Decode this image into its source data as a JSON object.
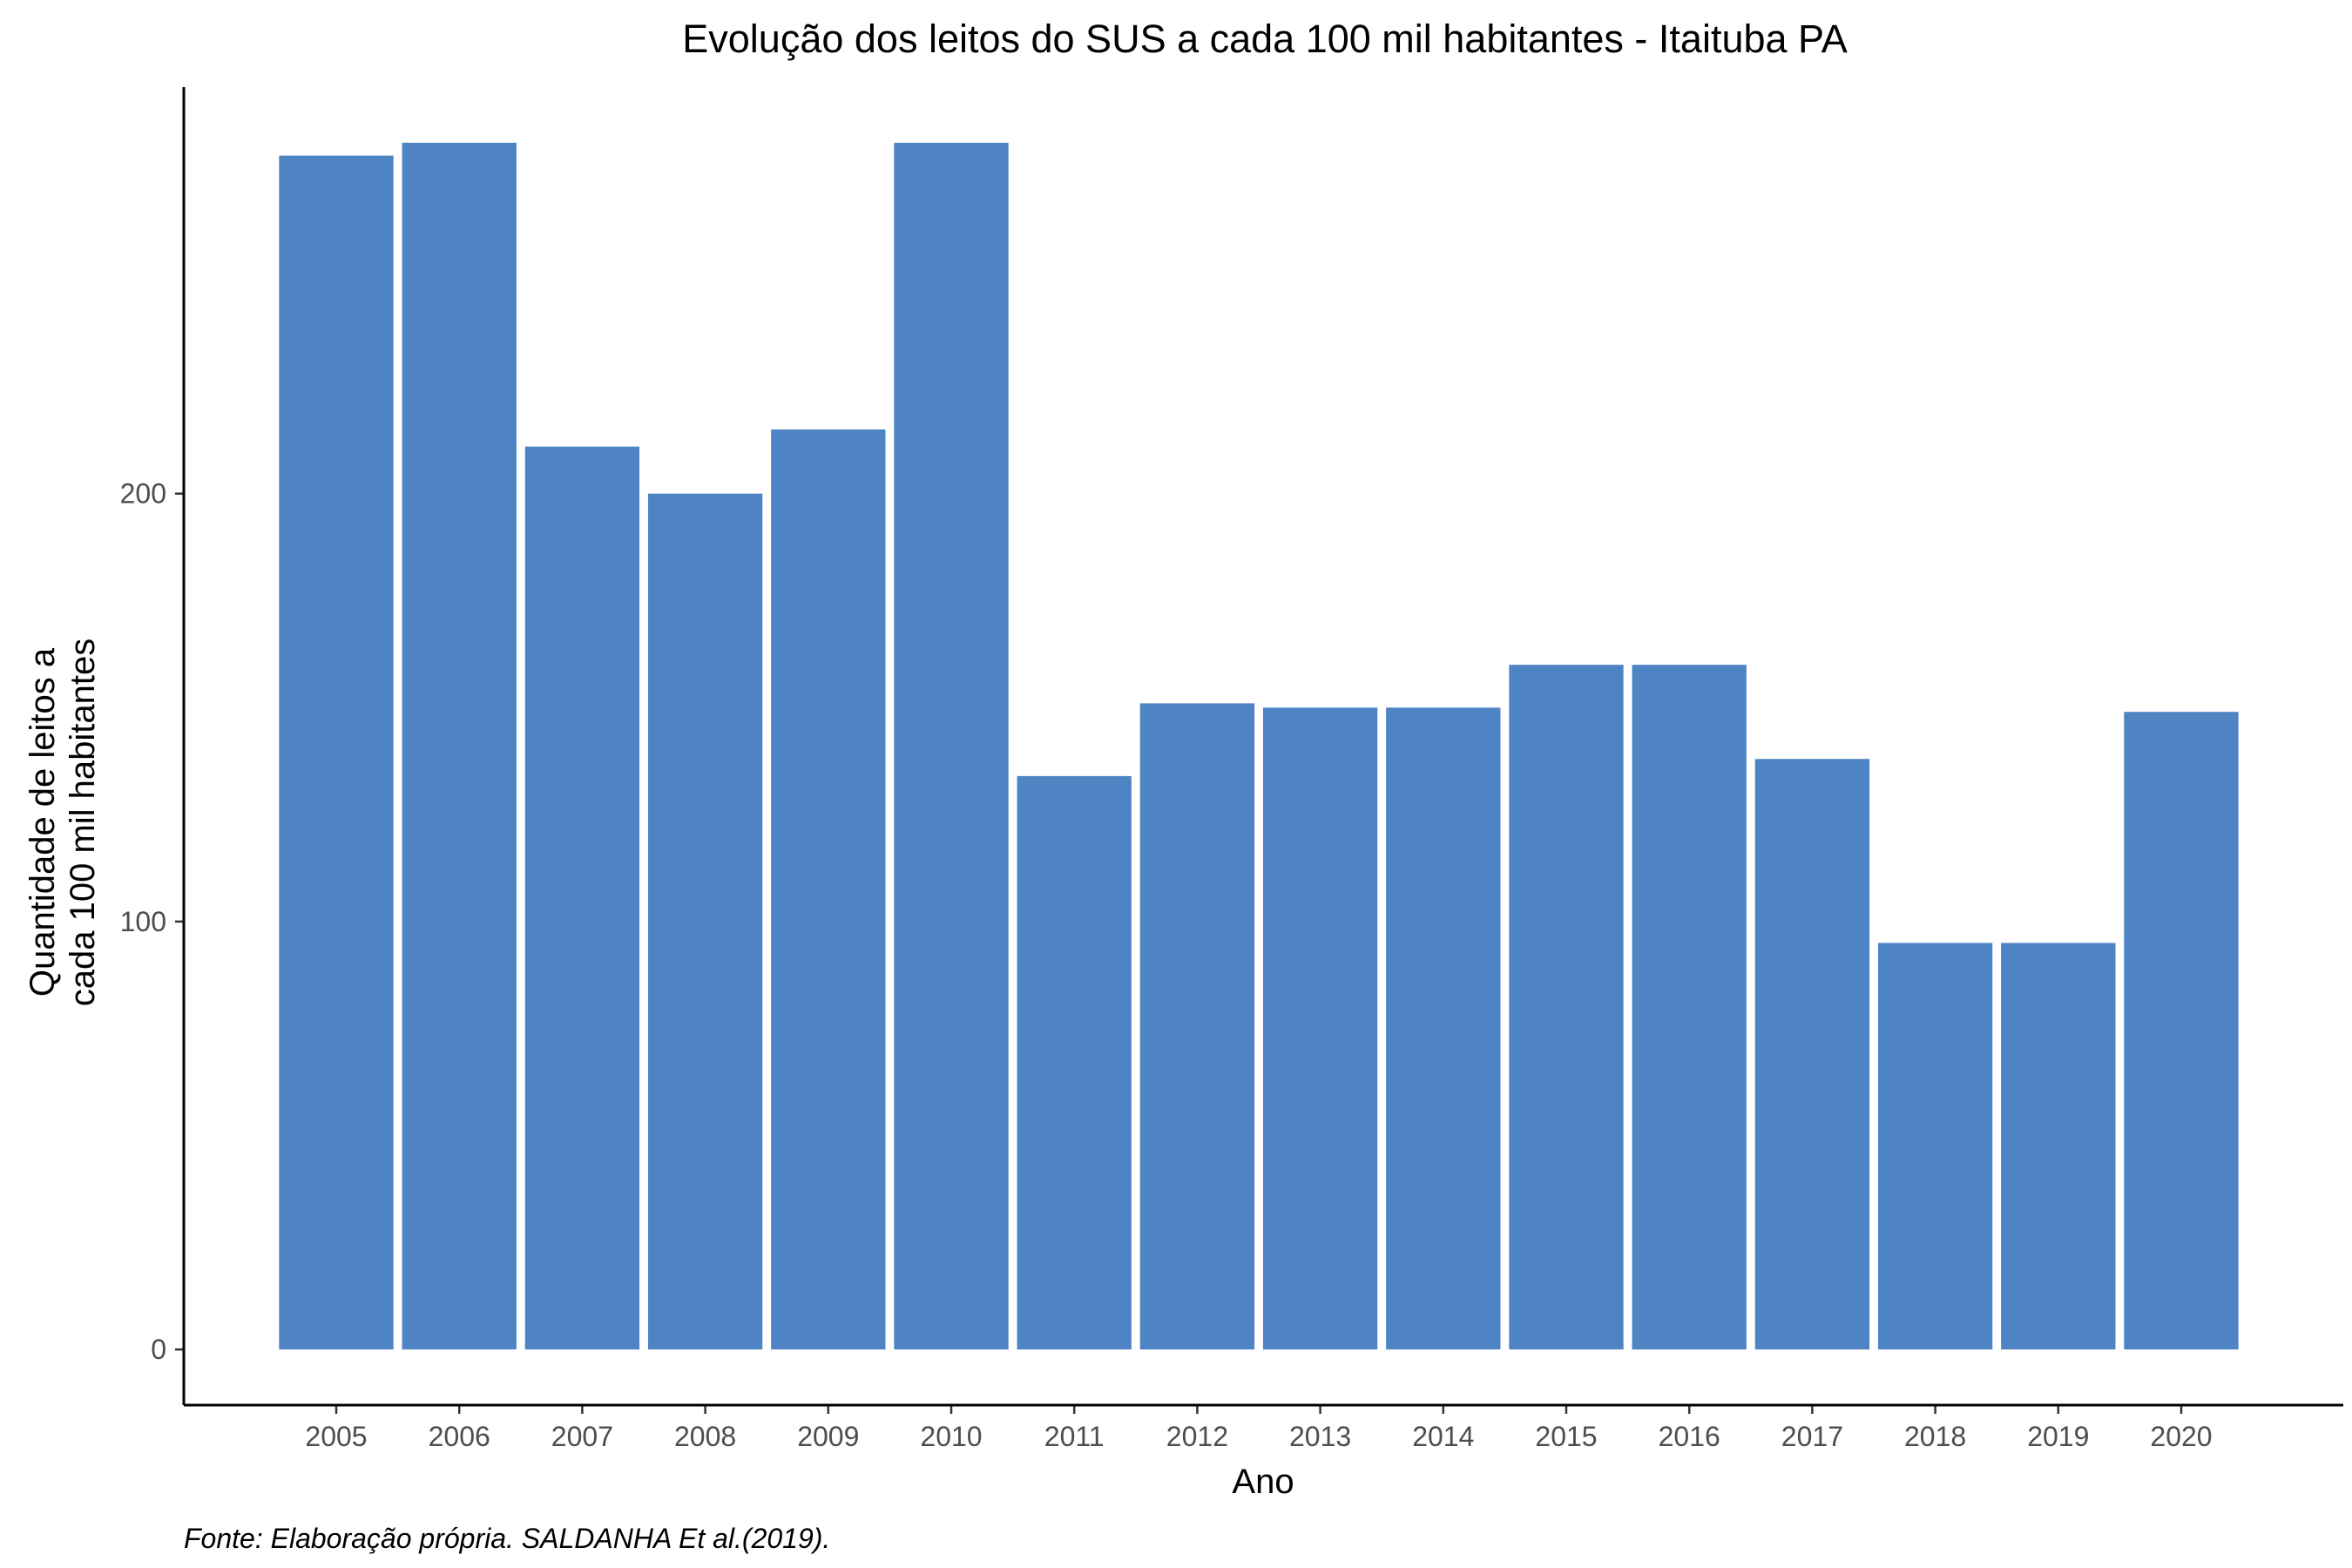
{
  "chart_data": {
    "type": "bar",
    "title": "Evolução dos leitos do SUS a cada 100 mil habitantes -  Itaituba PA",
    "xlabel": "Ano",
    "ylabel_lines": [
      "Quantidade de leitos a",
      "cada 100 mil habitantes"
    ],
    "caption": "Fonte: Elaboração própria. SALDANHA Et al.(2019).",
    "categories": [
      "2005",
      "2006",
      "2007",
      "2008",
      "2009",
      "2010",
      "2011",
      "2012",
      "2013",
      "2014",
      "2015",
      "2016",
      "2017",
      "2018",
      "2019",
      "2020"
    ],
    "values": [
      279,
      282,
      211,
      200,
      215,
      282,
      134,
      151,
      150,
      150,
      160,
      160,
      138,
      95,
      95,
      149
    ],
    "yticks": [
      0,
      100,
      200
    ],
    "ylim": [
      -13,
      295
    ],
    "grid": false,
    "legend": "none",
    "bar_color": "#4f84c4"
  }
}
